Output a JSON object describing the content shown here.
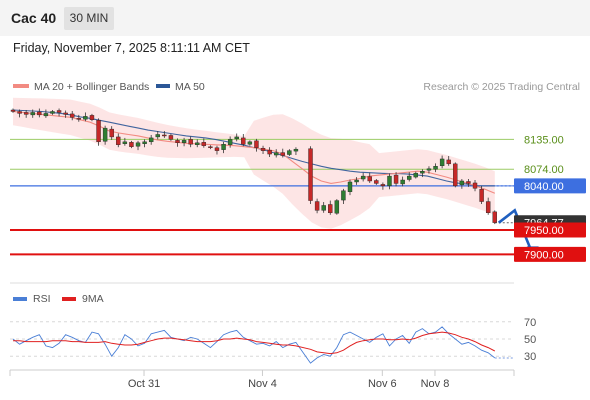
{
  "header": {
    "instrument": "Cac 40",
    "timeframe": "30 MIN",
    "datetime": "Friday, November 7, 2025 8:11:11 AM CET"
  },
  "legend_price": [
    {
      "label": "MA 20 + Bollinger Bands",
      "color": "#f28b82"
    },
    {
      "label": "MA 50",
      "color": "#2b5797"
    }
  ],
  "watermark": "Research © 2025 Trading Central",
  "legend_rsi": [
    {
      "label": "RSI",
      "color": "#4a7fd6"
    },
    {
      "label": "9MA",
      "color": "#e02020"
    }
  ],
  "colors": {
    "up": "#2e7d32",
    "down": "#c62828",
    "resistance": "#9ccc65",
    "pivot": "#3d6fe0",
    "support": "#e01010",
    "bands": "#fde0e0",
    "current": "#333333"
  },
  "chart_data": [
    {
      "type": "candlestick",
      "y_range": [
        7860,
        8195
      ],
      "x_labels": [
        {
          "label": "Oct 31",
          "index": 19
        },
        {
          "label": "Nov 4",
          "index": 37
        },
        {
          "label": "Nov 6",
          "index": 54
        },
        {
          "label": "Nov 8",
          "index": 62
        }
      ],
      "levels": [
        {
          "label": "8135.00",
          "value": 8135,
          "kind": "resistance"
        },
        {
          "label": "8074.00",
          "value": 8074,
          "kind": "resistance"
        },
        {
          "label": "8040.00",
          "value": 8040,
          "kind": "pivot"
        },
        {
          "label": "7964.77",
          "value": 7964.77,
          "kind": "current"
        },
        {
          "label": "7950.00",
          "value": 7950,
          "kind": "support"
        },
        {
          "label": "7900.00",
          "value": 7900,
          "kind": "support"
        }
      ],
      "closes": [
        8192,
        8188,
        8186,
        8190,
        8185,
        8188,
        8192,
        8190,
        8186,
        8180,
        8176,
        8182,
        8175,
        8130,
        8158,
        8140,
        8124,
        8130,
        8120,
        8128,
        8130,
        8138,
        8145,
        8142,
        8135,
        8128,
        8133,
        8125,
        8128,
        8122,
        8118,
        8112,
        8125,
        8135,
        8140,
        8125,
        8130,
        8118,
        8112,
        8105,
        8108,
        8102,
        8112,
        8115,
        8010,
        7990,
        8000,
        7985,
        8010,
        8030,
        8048,
        8052,
        8060,
        8050,
        8045,
        8040,
        8060,
        8045,
        8052,
        8060,
        8066,
        8070,
        8075,
        8080,
        8095,
        8085,
        8040,
        8050,
        8045,
        8035,
        8008,
        7985,
        7965
      ],
      "ma20": [
        8192,
        8190,
        8188,
        8186,
        8184,
        8182,
        8180,
        8175,
        8170,
        8162,
        8152,
        8148,
        8145,
        8142,
        8138,
        8134,
        8131,
        8129,
        8127,
        8126,
        8125,
        8124,
        8123,
        8122,
        8120,
        8118,
        8115,
        8112,
        8105,
        8090,
        8075,
        8060,
        8050,
        8045,
        8048,
        8052,
        8055,
        8060,
        8062,
        8064,
        8066,
        8068,
        8070,
        8068,
        8063,
        8058,
        8052,
        8046,
        8040,
        8033,
        8025
      ],
      "ma50": [
        8195,
        8194,
        8193,
        8192,
        8190,
        8188,
        8185,
        8181,
        8178,
        8174,
        8170,
        8166,
        8162,
        8158,
        8154,
        8151,
        8148,
        8145,
        8142,
        8140,
        8138,
        8135,
        8131,
        8127,
        8123,
        8118,
        8114,
        8108,
        8102,
        8096,
        8090,
        8085,
        8080,
        8076,
        8073,
        8070,
        8068,
        8067,
        8066,
        8065,
        8065,
        8064,
        8062,
        8060,
        8055,
        8050,
        8046,
        8044,
        8040,
        8040,
        8040
      ],
      "forecast": [
        7964.77,
        7990,
        7900
      ]
    },
    {
      "type": "line",
      "name": "rsi-panel",
      "y_ticks": [
        70,
        50,
        30
      ],
      "y_range": [
        14,
        79
      ],
      "rsi": [
        50,
        44,
        48,
        52,
        55,
        42,
        40,
        45,
        55,
        52,
        48,
        46,
        58,
        56,
        44,
        30,
        40,
        55,
        50,
        42,
        45,
        56,
        58,
        60,
        52,
        50,
        48,
        52,
        50,
        45,
        40,
        47,
        55,
        58,
        60,
        52,
        48,
        44,
        45,
        42,
        47,
        40,
        44,
        46,
        22,
        28,
        32,
        30,
        40,
        55,
        58,
        54,
        50,
        46,
        52,
        56,
        42,
        50,
        54,
        45,
        58,
        62,
        56,
        58,
        64,
        56,
        50,
        44,
        46,
        42,
        37,
        34,
        28
      ],
      "ma9": [
        48,
        48,
        47,
        47,
        47,
        47,
        48,
        48,
        48,
        47,
        47,
        46,
        46,
        46,
        47,
        45,
        44,
        43,
        43,
        44,
        46,
        48,
        50,
        51,
        51,
        50,
        49,
        48,
        47,
        47,
        47,
        48,
        50,
        50,
        51,
        50,
        49,
        47,
        46,
        45,
        44,
        43,
        43,
        42,
        38,
        35,
        34,
        33,
        34,
        37,
        42,
        46,
        48,
        49,
        50,
        50,
        49,
        49,
        50,
        49,
        51,
        54,
        56,
        57,
        58,
        57,
        55,
        52,
        50,
        47,
        43,
        40,
        36
      ]
    }
  ]
}
